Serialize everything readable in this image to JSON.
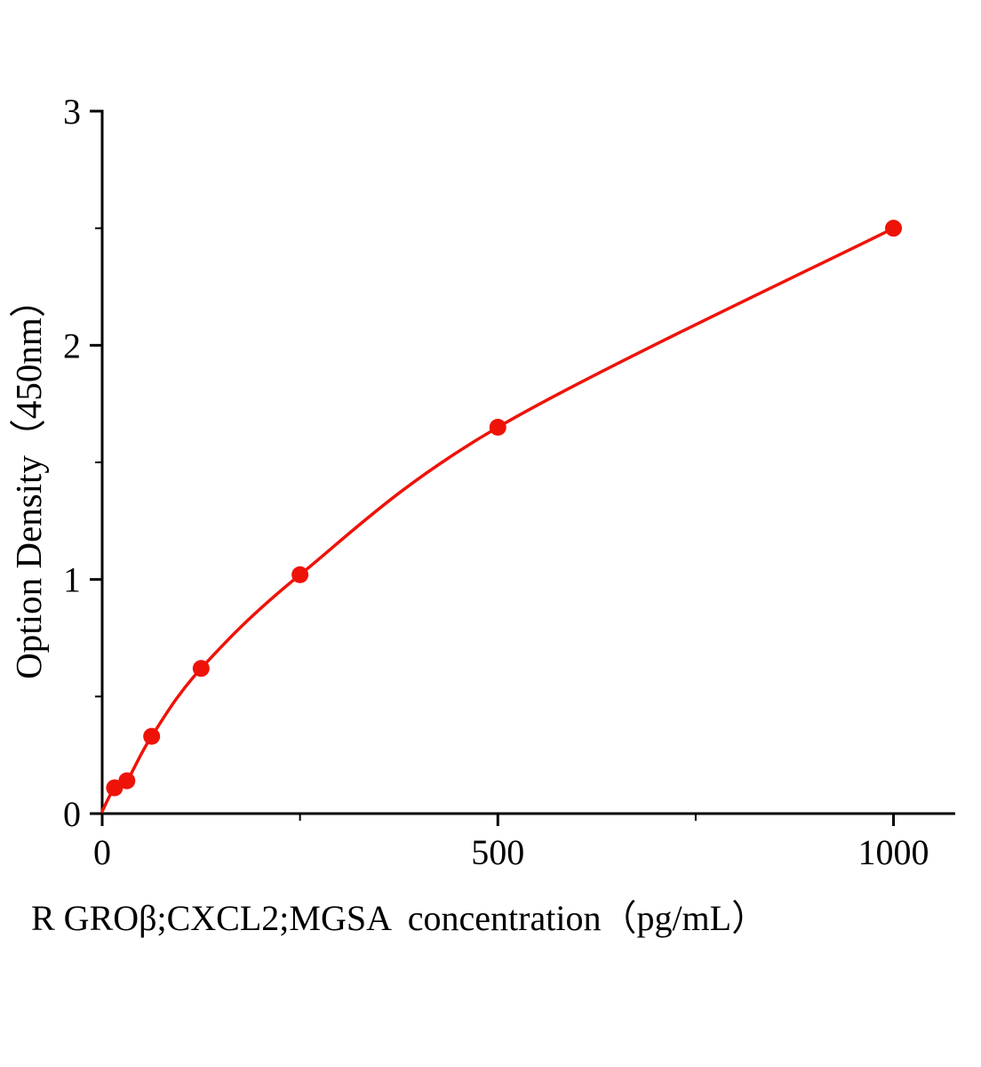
{
  "chart_data": {
    "type": "line",
    "title": "",
    "xlabel": "R GROβ;CXCL2;MGSA  concentration（pg/mL）",
    "ylabel": "Option Density（450nm）",
    "x": [
      15.6,
      31.2,
      62.5,
      125,
      250,
      500,
      1000
    ],
    "y": [
      0.11,
      0.14,
      0.33,
      0.62,
      1.02,
      1.65,
      2.5
    ],
    "curve_origin": {
      "x": 0,
      "y": 0.01
    },
    "xlim": [
      0,
      1078
    ],
    "ylim": [
      0,
      3
    ],
    "x_major_ticks": [
      0,
      500,
      1000
    ],
    "x_minor_ticks": [
      250,
      750
    ],
    "y_major_ticks": [
      0,
      1,
      2,
      3
    ],
    "y_minor_ticks": [
      0.5,
      1.5,
      2.5
    ],
    "x_tick_labels": [
      "0",
      "500",
      "1000"
    ],
    "y_tick_labels": [
      "0",
      "1",
      "2",
      "3"
    ],
    "grid": false,
    "legend": null,
    "line_color": "#ee1309",
    "marker_color": "#ee1309",
    "axis_color": "#000000"
  }
}
